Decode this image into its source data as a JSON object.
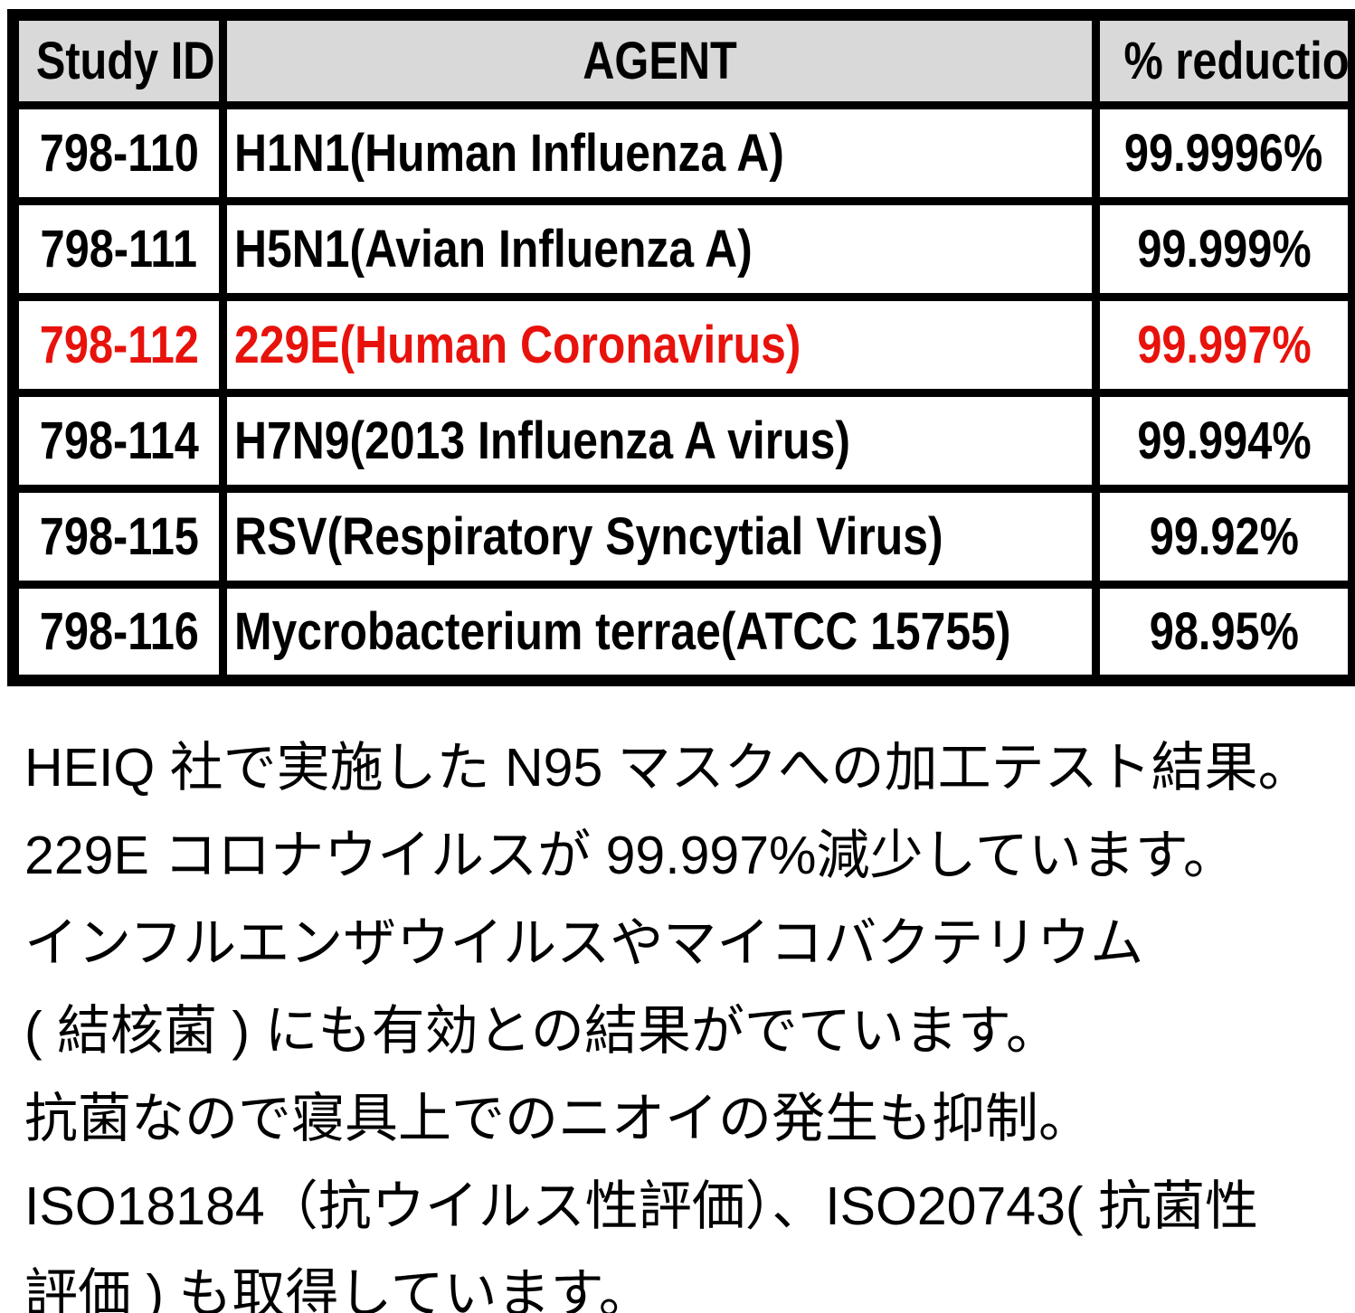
{
  "table": {
    "headers": {
      "study_id": "Study ID",
      "agent": "AGENT",
      "reduction": "% reduction"
    },
    "rows": [
      {
        "study_id": "798-110",
        "agent": "H1N1(Human Influenza A)",
        "reduction": "99.9996%",
        "highlight": false
      },
      {
        "study_id": "798-111",
        "agent": "H5N1(Avian Influenza A)",
        "reduction": "99.999%",
        "highlight": false
      },
      {
        "study_id": "798-112",
        "agent": "229E(Human Coronavirus)",
        "reduction": "99.997%",
        "highlight": true
      },
      {
        "study_id": "798-114",
        "agent": "H7N9(2013 Influenza A virus)",
        "reduction": "99.994%",
        "highlight": false
      },
      {
        "study_id": "798-115",
        "agent": "RSV(Respiratory Syncytial Virus)",
        "reduction": "99.92%",
        "highlight": false
      },
      {
        "study_id": "798-116",
        "agent": "Mycrobacterium terrae(ATCC 15755)",
        "reduction": "98.95%",
        "highlight": false
      }
    ]
  },
  "description": {
    "lines": [
      "HEIQ 社で実施した N95 マスクへの加工テスト結果。",
      "229E コロナウイルスが 99.997%減少しています。",
      "インフルエンザウイルスやマイコバクテリウム",
      "( 結核菌 ) にも有効との結果がでています。",
      "抗菌なので寝具上でのニオイの発生も抑制。",
      "ISO18184（抗ウイルス性評価）、ISO20743( 抗菌性",
      "評価 ) も取得しています。"
    ]
  },
  "colors": {
    "highlight_red": "#e8120c",
    "header_bg": "#d9d9d9",
    "border_black": "#000000",
    "text_black": "#000000"
  }
}
